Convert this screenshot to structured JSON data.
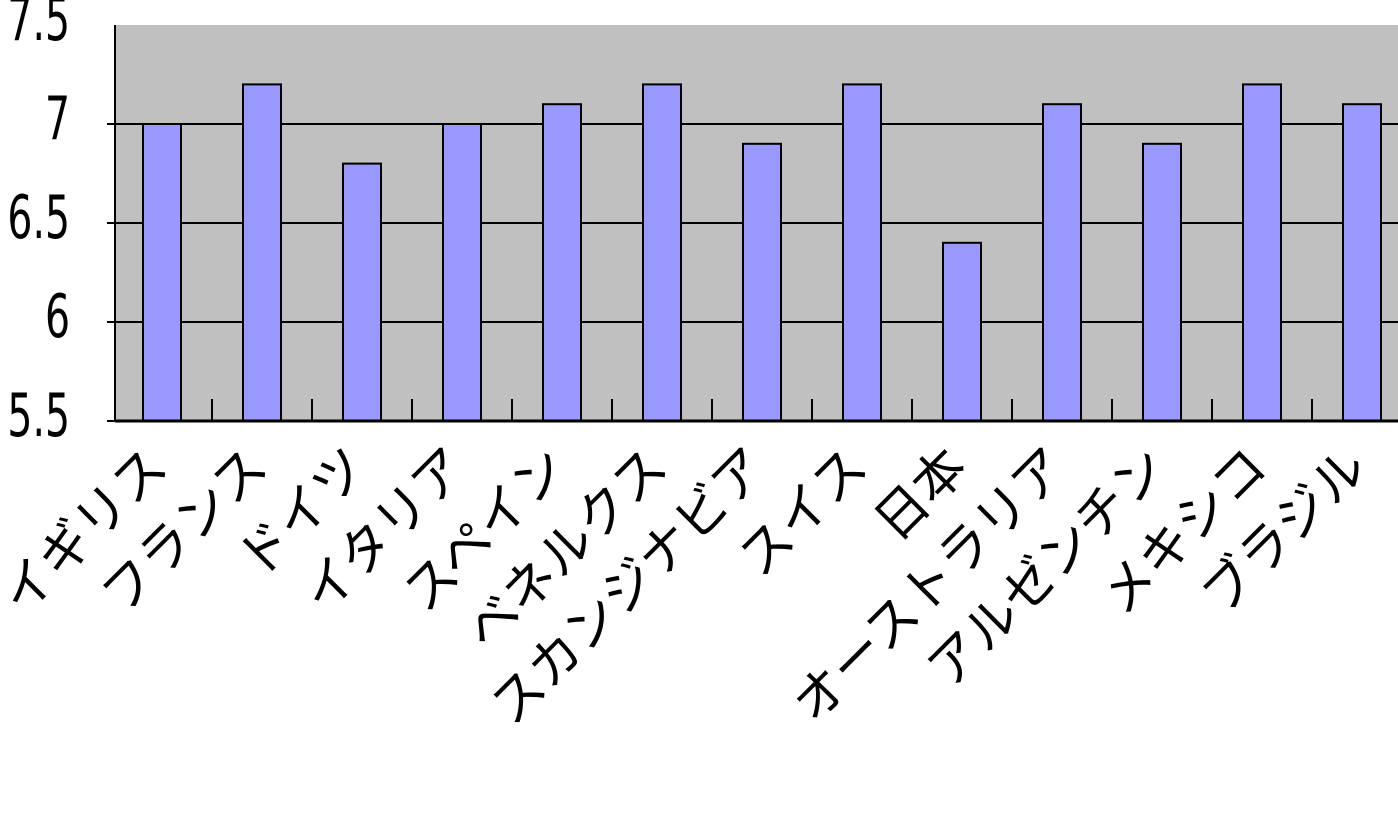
{
  "chart_data": {
    "type": "bar",
    "title": "",
    "xlabel": "",
    "ylabel": "",
    "categories": [
      "イギリス",
      "フランス",
      "ドイツ",
      "イタリア",
      "スペイン",
      "ベネルクス",
      "スカンジナビア",
      "スイス",
      "日本",
      "オーストラリア",
      "アルゼンチン",
      "メキシコ",
      "ブラジル"
    ],
    "values": [
      7.0,
      7.2,
      6.8,
      7.0,
      7.1,
      7.2,
      6.9,
      7.2,
      6.4,
      7.1,
      6.9,
      7.2,
      7.1
    ],
    "ylim": [
      5.5,
      7.5
    ],
    "yticks": [
      "5.5",
      "6",
      "6.5",
      "7",
      "7.5"
    ],
    "grid": true,
    "legend": "none",
    "colors": {
      "bar_fill": "#9999ff",
      "bar_stroke": "#000000",
      "plot_background": "#c0c0c0",
      "grid": "#000000"
    }
  }
}
